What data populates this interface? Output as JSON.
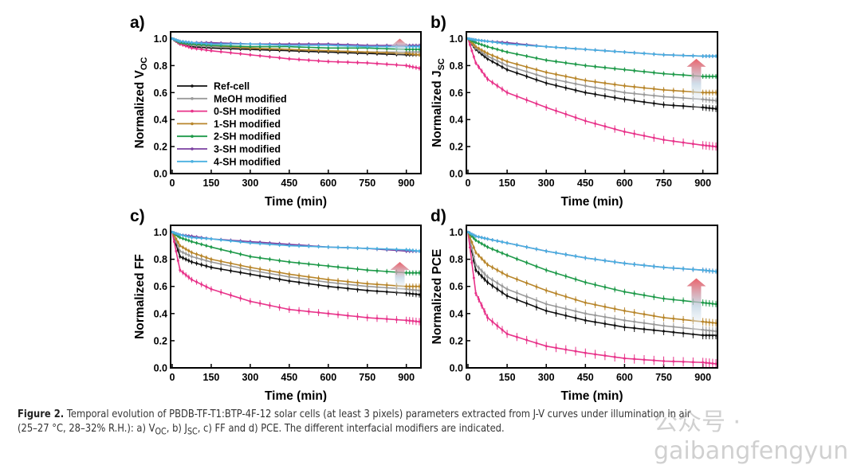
{
  "figure_caption": {
    "label": "Figure 2.",
    "line1": "Temporal evolution of PBDB-TF-T1:BTP-4F-12 solar cells (at least 3 pixels) parameters extracted from J-V curves under illumination in air",
    "line2_a": "(25–27 °C, 28–32% R.H.): a) V",
    "sub_oc": "OC",
    "line2_b": ", b) J",
    "sub_sc": "SC",
    "line2_c": ", c) FF and d) PCE. The different interfacial modifiers are indicated."
  },
  "watermark": "公众号 · gaibangfengyun",
  "chart_data": [
    {
      "panel": "a)",
      "type": "line",
      "xlabel": "Time (min)",
      "ylabel_main": "Normalized V",
      "ylabel_sub": "OC",
      "xlim": [
        0,
        950
      ],
      "ylim": [
        0,
        1.05
      ],
      "xticks": [
        0,
        150,
        300,
        450,
        600,
        750,
        900
      ],
      "yticks": [
        0.0,
        0.2,
        0.4,
        0.6,
        0.8,
        1.0
      ],
      "legend": "left",
      "x": [
        0,
        30,
        75,
        150,
        300,
        450,
        600,
        750,
        900,
        950
      ],
      "series": [
        {
          "name": "Ref-cell",
          "color": "#111111",
          "values": [
            1,
            0.96,
            0.94,
            0.93,
            0.92,
            0.91,
            0.9,
            0.89,
            0.88,
            0.88
          ]
        },
        {
          "name": "MeOH modified",
          "color": "#9a9a9a",
          "values": [
            1,
            0.97,
            0.95,
            0.94,
            0.93,
            0.92,
            0.91,
            0.9,
            0.9,
            0.9
          ]
        },
        {
          "name": "0-SH modified",
          "color": "#e8338a",
          "values": [
            1,
            0.96,
            0.93,
            0.91,
            0.88,
            0.85,
            0.83,
            0.82,
            0.8,
            0.78
          ]
        },
        {
          "name": "1-SH modified",
          "color": "#b8862b",
          "values": [
            1,
            0.97,
            0.96,
            0.95,
            0.93,
            0.92,
            0.91,
            0.9,
            0.89,
            0.88
          ]
        },
        {
          "name": "2-SH modified",
          "color": "#1f9a4a",
          "values": [
            1,
            0.97,
            0.96,
            0.95,
            0.94,
            0.94,
            0.93,
            0.93,
            0.92,
            0.92
          ]
        },
        {
          "name": "3-SH modified",
          "color": "#7a3fa0",
          "values": [
            1,
            0.98,
            0.97,
            0.97,
            0.96,
            0.96,
            0.96,
            0.95,
            0.95,
            0.95
          ]
        },
        {
          "name": "4-SH modified",
          "color": "#4ab0e0",
          "values": [
            1,
            0.98,
            0.97,
            0.96,
            0.96,
            0.95,
            0.95,
            0.94,
            0.94,
            0.94
          ]
        }
      ]
    },
    {
      "panel": "b)",
      "type": "line",
      "xlabel": "Time (min)",
      "ylabel_main": "Normalized J",
      "ylabel_sub": "SC",
      "xlim": [
        0,
        950
      ],
      "ylim": [
        0,
        1.05
      ],
      "xticks": [
        0,
        150,
        300,
        450,
        600,
        750,
        900
      ],
      "yticks": [
        0.0,
        0.2,
        0.4,
        0.6,
        0.8,
        1.0
      ],
      "x": [
        0,
        30,
        75,
        150,
        300,
        450,
        600,
        750,
        900,
        950
      ],
      "series": [
        {
          "name": "Ref-cell",
          "color": "#111111",
          "values": [
            1,
            0.92,
            0.85,
            0.77,
            0.67,
            0.6,
            0.55,
            0.51,
            0.49,
            0.48
          ]
        },
        {
          "name": "MeOH modified",
          "color": "#9a9a9a",
          "values": [
            1,
            0.93,
            0.87,
            0.8,
            0.71,
            0.65,
            0.6,
            0.57,
            0.55,
            0.54
          ]
        },
        {
          "name": "0-SH modified",
          "color": "#e8338a",
          "values": [
            1,
            0.82,
            0.7,
            0.6,
            0.49,
            0.39,
            0.31,
            0.25,
            0.21,
            0.2
          ]
        },
        {
          "name": "1-SH modified",
          "color": "#b8862b",
          "values": [
            1,
            0.94,
            0.89,
            0.83,
            0.75,
            0.69,
            0.65,
            0.62,
            0.6,
            0.6
          ]
        },
        {
          "name": "2-SH modified",
          "color": "#1f9a4a",
          "values": [
            1,
            0.97,
            0.94,
            0.9,
            0.84,
            0.8,
            0.77,
            0.74,
            0.72,
            0.72
          ]
        },
        {
          "name": "3-SH modified",
          "color": "#7a3fa0",
          "values": [
            1,
            0.99,
            0.98,
            0.97,
            0.94,
            0.92,
            0.9,
            0.88,
            0.87,
            0.87
          ]
        },
        {
          "name": "4-SH modified",
          "color": "#4ab0e0",
          "values": [
            1,
            0.99,
            0.98,
            0.96,
            0.94,
            0.92,
            0.9,
            0.88,
            0.87,
            0.87
          ]
        }
      ]
    },
    {
      "panel": "c)",
      "type": "line",
      "xlabel": "Time (min)",
      "ylabel_main": "Normalized FF",
      "ylabel_sub": "",
      "xlim": [
        0,
        950
      ],
      "ylim": [
        0,
        1.05
      ],
      "xticks": [
        0,
        150,
        300,
        450,
        600,
        750,
        900
      ],
      "yticks": [
        0.0,
        0.2,
        0.4,
        0.6,
        0.8,
        1.0
      ],
      "x": [
        0,
        30,
        75,
        150,
        300,
        450,
        600,
        750,
        900,
        950
      ],
      "series": [
        {
          "name": "Ref-cell",
          "color": "#111111",
          "values": [
            1,
            0.82,
            0.78,
            0.74,
            0.69,
            0.64,
            0.6,
            0.57,
            0.55,
            0.54
          ]
        },
        {
          "name": "MeOH modified",
          "color": "#9a9a9a",
          "values": [
            1,
            0.86,
            0.82,
            0.78,
            0.72,
            0.67,
            0.63,
            0.6,
            0.58,
            0.57
          ]
        },
        {
          "name": "0-SH modified",
          "color": "#e8338a",
          "values": [
            1,
            0.72,
            0.65,
            0.58,
            0.49,
            0.43,
            0.4,
            0.37,
            0.35,
            0.34
          ]
        },
        {
          "name": "1-SH modified",
          "color": "#b8862b",
          "values": [
            1,
            0.9,
            0.85,
            0.8,
            0.74,
            0.69,
            0.65,
            0.62,
            0.6,
            0.6
          ]
        },
        {
          "name": "2-SH modified",
          "color": "#1f9a4a",
          "values": [
            1,
            0.96,
            0.93,
            0.89,
            0.82,
            0.78,
            0.75,
            0.72,
            0.7,
            0.7
          ]
        },
        {
          "name": "3-SH modified",
          "color": "#7a3fa0",
          "values": [
            1,
            0.98,
            0.97,
            0.95,
            0.93,
            0.91,
            0.89,
            0.88,
            0.86,
            0.86
          ]
        },
        {
          "name": "4-SH modified",
          "color": "#4ab0e0",
          "values": [
            1,
            0.98,
            0.96,
            0.95,
            0.92,
            0.9,
            0.89,
            0.88,
            0.87,
            0.86
          ]
        }
      ]
    },
    {
      "panel": "d)",
      "type": "line",
      "xlabel": "Time (min)",
      "ylabel_main": "Normalized PCE",
      "ylabel_sub": "",
      "xlim": [
        0,
        950
      ],
      "ylim": [
        0,
        1.05
      ],
      "xticks": [
        0,
        150,
        300,
        450,
        600,
        750,
        900
      ],
      "yticks": [
        0.0,
        0.2,
        0.4,
        0.6,
        0.8,
        1.0
      ],
      "x": [
        0,
        30,
        75,
        150,
        300,
        450,
        600,
        750,
        900,
        950
      ],
      "series": [
        {
          "name": "Ref-cell",
          "color": "#111111",
          "values": [
            1,
            0.72,
            0.63,
            0.53,
            0.42,
            0.35,
            0.3,
            0.27,
            0.24,
            0.24
          ]
        },
        {
          "name": "MeOH modified",
          "color": "#9a9a9a",
          "values": [
            1,
            0.76,
            0.67,
            0.58,
            0.47,
            0.4,
            0.35,
            0.31,
            0.28,
            0.27
          ]
        },
        {
          "name": "0-SH modified",
          "color": "#e8338a",
          "values": [
            1,
            0.55,
            0.37,
            0.25,
            0.16,
            0.11,
            0.07,
            0.05,
            0.04,
            0.03
          ]
        },
        {
          "name": "1-SH modified",
          "color": "#b8862b",
          "values": [
            1,
            0.85,
            0.76,
            0.68,
            0.57,
            0.48,
            0.42,
            0.37,
            0.34,
            0.33
          ]
        },
        {
          "name": "2-SH modified",
          "color": "#1f9a4a",
          "values": [
            1,
            0.94,
            0.89,
            0.83,
            0.72,
            0.63,
            0.56,
            0.51,
            0.48,
            0.47
          ]
        },
        {
          "name": "3-SH modified",
          "color": "#7a3fa0",
          "values": [
            1,
            0.97,
            0.95,
            0.92,
            0.86,
            0.81,
            0.77,
            0.74,
            0.72,
            0.71
          ]
        },
        {
          "name": "4-SH modified",
          "color": "#4ab0e0",
          "values": [
            1,
            0.97,
            0.95,
            0.92,
            0.86,
            0.81,
            0.77,
            0.74,
            0.72,
            0.71
          ]
        }
      ]
    }
  ]
}
